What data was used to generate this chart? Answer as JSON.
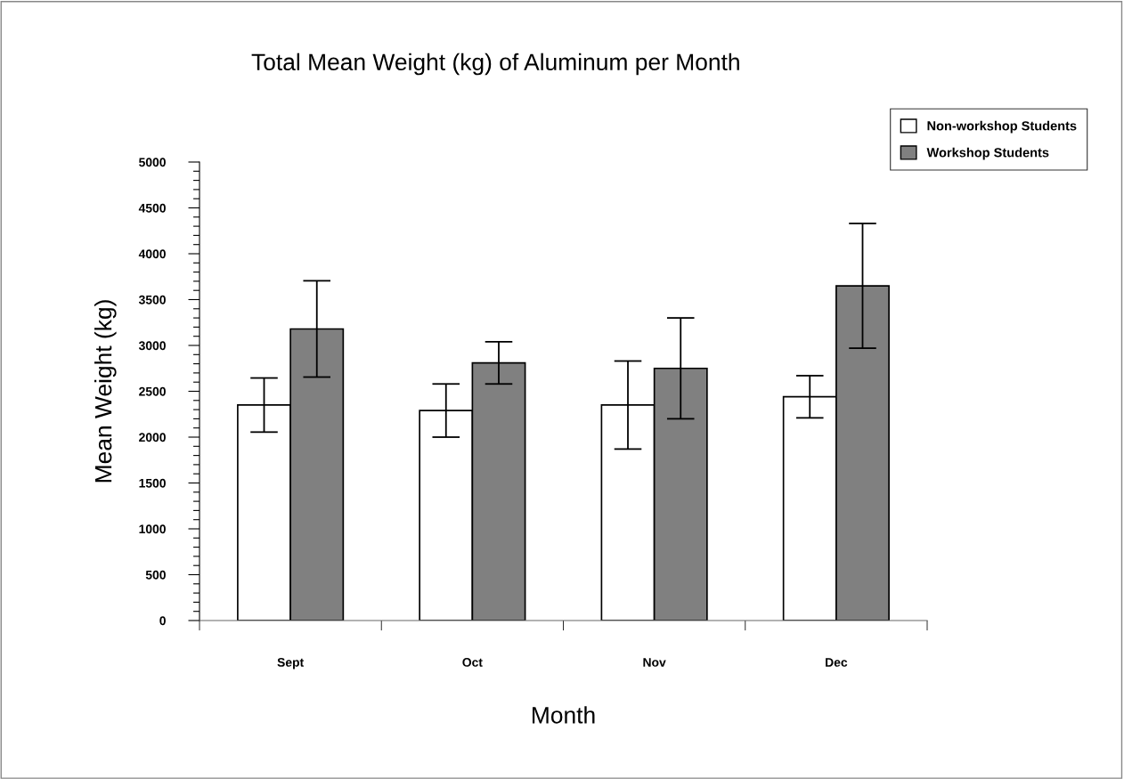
{
  "chart_data": {
    "type": "bar",
    "title": "Total Mean Weight (kg) of Aluminum per Month",
    "xlabel": "Month",
    "ylabel": "Mean Weight (kg)",
    "categories": [
      "Sept",
      "Oct",
      "Nov",
      "Dec"
    ],
    "series": [
      {
        "name": "Non-workshop Students",
        "color": "#ffffff",
        "values": [
          2350,
          2290,
          2350,
          2440
        ],
        "errors": [
          295,
          290,
          480,
          230
        ]
      },
      {
        "name": "Workshop Students",
        "color": "#808080",
        "values": [
          3180,
          2810,
          2750,
          3650
        ],
        "errors": [
          525,
          230,
          550,
          680
        ]
      }
    ],
    "ylim": [
      0,
      5000
    ],
    "yticks": [
      0,
      {
        "value": 100,
        "label": null
      },
      {
        "value": 200,
        "label": null
      },
      {
        "value": 300,
        "label": null
      },
      {
        "value": 400,
        "label": null
      },
      500,
      {
        "value": 600,
        "label": null
      },
      {
        "value": 700,
        "label": null
      },
      {
        "value": 800,
        "label": null
      },
      {
        "value": 900,
        "label": null
      },
      1000,
      {
        "value": 1100,
        "label": null
      },
      {
        "value": 1200,
        "label": null
      },
      {
        "value": 1300,
        "label": null
      },
      {
        "value": 1400,
        "label": null
      },
      1500,
      {
        "value": 1600,
        "label": null
      },
      {
        "value": 1700,
        "label": null
      },
      {
        "value": 1800,
        "label": null
      },
      {
        "value": 1900,
        "label": null
      },
      2000,
      {
        "value": 2100,
        "label": null
      },
      {
        "value": 2200,
        "label": null
      },
      {
        "value": 2300,
        "label": null
      },
      {
        "value": 2400,
        "label": null
      },
      2500,
      {
        "value": 2600,
        "label": null
      },
      {
        "value": 2700,
        "label": null
      },
      {
        "value": 2800,
        "label": null
      },
      {
        "value": 2900,
        "label": null
      },
      3000,
      {
        "value": 3100,
        "label": null
      },
      {
        "value": 3200,
        "label": null
      },
      {
        "value": 3300,
        "label": null
      },
      {
        "value": 3400,
        "label": null
      },
      3500,
      {
        "value": 3600,
        "label": null
      },
      {
        "value": 3700,
        "label": null
      },
      {
        "value": 3800,
        "label": null
      },
      {
        "value": 3900,
        "label": null
      },
      4000,
      {
        "value": 4100,
        "label": null
      },
      {
        "value": 4200,
        "label": null
      },
      {
        "value": 4300,
        "label": null
      },
      {
        "value": 4400,
        "label": null
      },
      4500,
      {
        "value": 4600,
        "label": null
      },
      {
        "value": 4700,
        "label": null
      },
      {
        "value": 4800,
        "label": null
      },
      {
        "value": 4900,
        "label": null
      },
      5000
    ],
    "grid": false,
    "legend": "top right"
  }
}
